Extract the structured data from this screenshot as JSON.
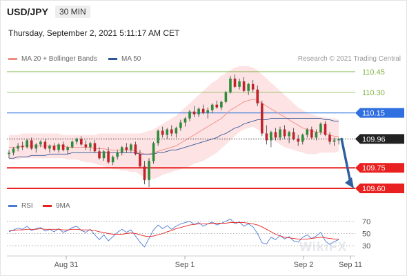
{
  "header": {
    "pair": "USD/JPY",
    "timeframe": "30 MIN",
    "datetime": "Thursday, September 2, 2021 5:11:17 AM CET"
  },
  "legend_main": [
    {
      "label": "MA 20 + Bollinger Bands",
      "color": "#f28b82"
    },
    {
      "label": "MA 50",
      "color": "#2f5597"
    }
  ],
  "legend_rsi": [
    {
      "label": "RSI",
      "color": "#4a7bd4"
    },
    {
      "label": "9MA",
      "color": "#e8201f"
    }
  ],
  "credit": "Research © 2021 Trading Central",
  "watermark": "WikiFX",
  "chart_data": [
    {
      "type": "candlestick",
      "ylim": [
        109.54,
        110.52
      ],
      "x_tick_labels": [
        "Aug 31",
        "Sep 1",
        "Sep 2",
        "Sep 11"
      ],
      "grid": false,
      "levels": [
        {
          "value": 110.45,
          "label": "110.45",
          "color": "#7cb342",
          "style": "thin",
          "label_style": "text"
        },
        {
          "value": 110.3,
          "label": "110.30",
          "color": "#7cb342",
          "style": "thin",
          "label_style": "text"
        },
        {
          "value": 110.15,
          "label": "110.15",
          "color": "#3d7ee0",
          "style": "medium",
          "label_style": "box-blue"
        },
        {
          "value": 109.96,
          "label": "109.96",
          "color": "#333333",
          "style": "dotted",
          "label_style": "box-black"
        },
        {
          "value": 109.75,
          "label": "109.75",
          "color": "#e8201f",
          "style": "thick",
          "label_style": "box-red"
        },
        {
          "value": 109.6,
          "label": "109.60",
          "color": "#e8201f",
          "style": "thick",
          "label_style": "box-red"
        }
      ],
      "forecast_arrow": {
        "from": 109.96,
        "to": 109.6,
        "color": "#2f5fa0"
      },
      "candles": [
        [
          109.85,
          109.88,
          109.82,
          109.86
        ],
        [
          109.86,
          109.9,
          109.84,
          109.89
        ],
        [
          109.89,
          109.93,
          109.87,
          109.91
        ],
        [
          109.91,
          109.94,
          109.88,
          109.9
        ],
        [
          109.9,
          109.96,
          109.89,
          109.95
        ],
        [
          109.95,
          109.97,
          109.88,
          109.89
        ],
        [
          109.89,
          109.93,
          109.86,
          109.92
        ],
        [
          109.92,
          109.95,
          109.9,
          109.94
        ],
        [
          109.94,
          109.96,
          109.88,
          109.89
        ],
        [
          109.89,
          109.92,
          109.86,
          109.91
        ],
        [
          109.91,
          109.93,
          109.87,
          109.88
        ],
        [
          109.88,
          109.93,
          109.86,
          109.92
        ],
        [
          109.92,
          109.94,
          109.87,
          109.88
        ],
        [
          109.88,
          109.91,
          109.85,
          109.9
        ],
        [
          109.9,
          109.95,
          109.89,
          109.94
        ],
        [
          109.94,
          109.97,
          109.92,
          109.96
        ],
        [
          109.96,
          109.98,
          109.91,
          109.92
        ],
        [
          109.92,
          109.95,
          109.88,
          109.9
        ],
        [
          109.9,
          109.94,
          109.87,
          109.93
        ],
        [
          109.93,
          109.95,
          109.86,
          109.87
        ],
        [
          109.87,
          109.9,
          109.81,
          109.82
        ],
        [
          109.82,
          109.88,
          109.8,
          109.87
        ],
        [
          109.87,
          109.9,
          109.78,
          109.79
        ],
        [
          109.79,
          109.84,
          109.77,
          109.83
        ],
        [
          109.83,
          109.88,
          109.81,
          109.86
        ],
        [
          109.86,
          109.91,
          109.84,
          109.9
        ],
        [
          109.9,
          109.93,
          109.86,
          109.88
        ],
        [
          109.88,
          109.93,
          109.86,
          109.92
        ],
        [
          109.92,
          109.94,
          109.84,
          109.85
        ],
        [
          109.85,
          109.88,
          109.75,
          109.76
        ],
        [
          109.76,
          109.8,
          109.63,
          109.66
        ],
        [
          109.66,
          109.82,
          109.61,
          109.8
        ],
        [
          109.8,
          109.94,
          109.78,
          109.93
        ],
        [
          109.93,
          110.03,
          109.91,
          110.02
        ],
        [
          110.02,
          110.05,
          109.97,
          109.99
        ],
        [
          109.99,
          110.04,
          109.96,
          110.03
        ],
        [
          110.03,
          110.06,
          109.98,
          110.0
        ],
        [
          110.0,
          110.05,
          109.97,
          110.04
        ],
        [
          110.04,
          110.1,
          110.02,
          110.08
        ],
        [
          110.08,
          110.12,
          110.05,
          110.11
        ],
        [
          110.11,
          110.17,
          110.09,
          110.16
        ],
        [
          110.16,
          110.2,
          110.12,
          110.14
        ],
        [
          110.14,
          110.19,
          110.12,
          110.18
        ],
        [
          110.18,
          110.21,
          110.14,
          110.15
        ],
        [
          110.15,
          110.19,
          110.11,
          110.17
        ],
        [
          110.17,
          110.22,
          110.15,
          110.21
        ],
        [
          110.21,
          110.24,
          110.18,
          110.19
        ],
        [
          110.19,
          110.24,
          110.17,
          110.23
        ],
        [
          110.23,
          110.31,
          110.22,
          110.3
        ],
        [
          110.3,
          110.42,
          110.29,
          110.4
        ],
        [
          110.4,
          110.43,
          110.33,
          110.34
        ],
        [
          110.34,
          110.4,
          110.32,
          110.38
        ],
        [
          110.38,
          110.41,
          110.3,
          110.31
        ],
        [
          110.31,
          110.37,
          110.28,
          110.36
        ],
        [
          110.36,
          110.39,
          110.3,
          110.32
        ],
        [
          110.32,
          110.35,
          110.2,
          110.22
        ],
        [
          110.22,
          110.24,
          109.98,
          110.0
        ],
        [
          110.0,
          110.06,
          109.92,
          109.95
        ],
        [
          109.95,
          110.02,
          109.9,
          110.01
        ],
        [
          110.01,
          110.04,
          109.95,
          109.97
        ],
        [
          109.97,
          110.05,
          109.95,
          110.03
        ],
        [
          110.03,
          110.06,
          109.96,
          109.98
        ],
        [
          109.98,
          110.02,
          109.93,
          110.01
        ],
        [
          110.01,
          110.04,
          109.95,
          109.96
        ],
        [
          109.96,
          109.99,
          109.91,
          109.94
        ],
        [
          109.94,
          110.0,
          109.92,
          109.99
        ],
        [
          109.99,
          110.04,
          109.97,
          110.03
        ],
        [
          110.03,
          110.05,
          109.96,
          109.97
        ],
        [
          109.97,
          110.03,
          109.95,
          110.01
        ],
        [
          110.01,
          110.08,
          109.99,
          110.07
        ],
        [
          110.07,
          110.09,
          109.98,
          109.99
        ],
        [
          109.99,
          110.01,
          109.92,
          109.94
        ],
        [
          109.94,
          109.97,
          109.91,
          109.95
        ],
        [
          109.95,
          109.97,
          109.92,
          109.96
        ]
      ],
      "ma20": [
        109.9,
        109.9,
        109.9,
        109.91,
        109.91,
        109.91,
        109.91,
        109.91,
        109.91,
        109.91,
        109.91,
        109.91,
        109.91,
        109.9,
        109.9,
        109.9,
        109.9,
        109.9,
        109.9,
        109.89,
        109.89,
        109.89,
        109.88,
        109.88,
        109.88,
        109.88,
        109.88,
        109.88,
        109.87,
        109.86,
        109.85,
        109.85,
        109.86,
        109.87,
        109.88,
        109.89,
        109.9,
        109.91,
        109.93,
        109.95,
        109.97,
        109.99,
        110.01,
        110.03,
        110.05,
        110.07,
        110.09,
        110.11,
        110.14,
        110.17,
        110.19,
        110.21,
        110.23,
        110.24,
        110.25,
        110.24,
        110.22,
        110.2,
        110.18,
        110.16,
        110.14,
        110.12,
        110.1,
        110.08,
        110.06,
        110.04,
        110.03,
        110.02,
        110.01,
        110.01,
        110.0,
        109.99,
        109.98,
        109.98
      ],
      "ma50": [
        109.82,
        109.82,
        109.83,
        109.83,
        109.83,
        109.84,
        109.84,
        109.84,
        109.84,
        109.85,
        109.85,
        109.85,
        109.85,
        109.85,
        109.86,
        109.86,
        109.86,
        109.86,
        109.86,
        109.86,
        109.86,
        109.86,
        109.86,
        109.86,
        109.86,
        109.86,
        109.86,
        109.86,
        109.86,
        109.85,
        109.85,
        109.85,
        109.85,
        109.86,
        109.86,
        109.87,
        109.88,
        109.88,
        109.89,
        109.9,
        109.91,
        109.92,
        109.93,
        109.94,
        109.95,
        109.96,
        109.97,
        109.99,
        110.0,
        110.02,
        110.04,
        110.05,
        110.07,
        110.08,
        110.09,
        110.1,
        110.1,
        110.1,
        110.11,
        110.11,
        110.11,
        110.11,
        110.11,
        110.11,
        110.11,
        110.11,
        110.11,
        110.11,
        110.11,
        110.11,
        110.1,
        110.1,
        110.09,
        110.09
      ],
      "bb_upper": [
        109.99,
        109.99,
        109.99,
        110.0,
        110.0,
        110.0,
        110.0,
        110.0,
        110.0,
        110.0,
        110.0,
        110.0,
        109.99,
        109.99,
        109.99,
        109.99,
        109.99,
        109.99,
        109.99,
        109.99,
        110.0,
        110.0,
        110.0,
        110.0,
        110.0,
        110.0,
        110.0,
        110.0,
        110.0,
        110.0,
        110.01,
        110.02,
        110.03,
        110.05,
        110.07,
        110.09,
        110.11,
        110.13,
        110.16,
        110.19,
        110.22,
        110.25,
        110.28,
        110.31,
        110.34,
        110.37,
        110.39,
        110.42,
        110.44,
        110.46,
        110.48,
        110.49,
        110.49,
        110.49,
        110.48,
        110.46,
        110.43,
        110.4,
        110.37,
        110.34,
        110.31,
        110.28,
        110.25,
        110.22,
        110.19,
        110.17,
        110.15,
        110.14,
        110.13,
        110.12,
        110.12,
        110.11,
        110.11,
        110.1
      ],
      "bb_lower": [
        109.81,
        109.81,
        109.81,
        109.82,
        109.82,
        109.82,
        109.82,
        109.82,
        109.82,
        109.82,
        109.82,
        109.82,
        109.82,
        109.81,
        109.81,
        109.81,
        109.8,
        109.79,
        109.79,
        109.78,
        109.77,
        109.76,
        109.75,
        109.74,
        109.74,
        109.73,
        109.73,
        109.72,
        109.72,
        109.7,
        109.68,
        109.67,
        109.67,
        109.68,
        109.7,
        109.71,
        109.72,
        109.73,
        109.74,
        109.75,
        109.76,
        109.78,
        109.79,
        109.8,
        109.82,
        109.84,
        109.86,
        109.89,
        109.92,
        109.95,
        109.98,
        110.01,
        110.03,
        110.04,
        110.05,
        110.03,
        110.01,
        109.99,
        109.96,
        109.94,
        109.92,
        109.9,
        109.89,
        109.88,
        109.87,
        109.86,
        109.85,
        109.85,
        109.85,
        109.86,
        109.86,
        109.86,
        109.86,
        109.87
      ]
    },
    {
      "type": "line",
      "ylim": [
        20,
        80
      ],
      "y_ticks": [
        70,
        50,
        30
      ],
      "series": [
        {
          "name": "RSI",
          "color": "#4a7bd4",
          "values": [
            53,
            56,
            59,
            57,
            62,
            55,
            58,
            60,
            54,
            57,
            53,
            58,
            52,
            55,
            60,
            62,
            55,
            52,
            57,
            48,
            40,
            48,
            38,
            45,
            52,
            57,
            52,
            56,
            46,
            36,
            28,
            42,
            56,
            64,
            58,
            63,
            57,
            62,
            66,
            68,
            70,
            65,
            68,
            62,
            66,
            69,
            64,
            67,
            70,
            74,
            66,
            69,
            62,
            66,
            61,
            50,
            35,
            33,
            44,
            40,
            47,
            41,
            45,
            38,
            36,
            44,
            48,
            42,
            46,
            52,
            38,
            32,
            37,
            40
          ]
        },
        {
          "name": "9MA",
          "color": "#e8201f",
          "values": [
            55,
            55,
            56,
            56,
            57,
            57,
            57,
            58,
            57,
            57,
            57,
            57,
            56,
            56,
            57,
            57,
            56,
            56,
            56,
            55,
            53,
            52,
            50,
            49,
            49,
            49,
            50,
            51,
            50,
            48,
            46,
            45,
            46,
            48,
            50,
            53,
            55,
            58,
            60,
            62,
            64,
            65,
            66,
            66,
            66,
            67,
            67,
            67,
            67,
            68,
            68,
            68,
            68,
            67,
            66,
            64,
            61,
            57,
            53,
            49,
            46,
            44,
            43,
            42,
            41,
            41,
            41,
            42,
            43,
            44,
            43,
            42,
            41,
            41
          ]
        }
      ]
    }
  ]
}
